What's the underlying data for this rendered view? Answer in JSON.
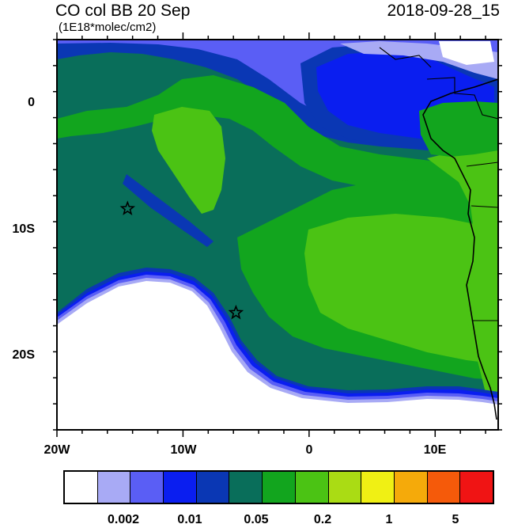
{
  "header": {
    "title_left": "CO col BB 20 Sep",
    "title_right": "2018-09-28_15",
    "subtitle": "(1E18*molec/cm2)"
  },
  "axes": {
    "y_labels": [
      "0",
      "10S",
      "20S"
    ],
    "x_labels": [
      "20W",
      "10W",
      "0",
      "10E"
    ]
  },
  "map": {
    "lon_range": [
      -20,
      15
    ],
    "lat_range": [
      -25,
      5
    ],
    "markers": [
      {
        "name": "star",
        "lon": -14.4,
        "lat": -8.0
      },
      {
        "name": "star",
        "lon": -5.8,
        "lat": -16.0
      }
    ]
  },
  "colorbar": {
    "colors": [
      "#ffffff",
      "#a8aaf5",
      "#5a5ef5",
      "#0a1ef0",
      "#0a37b4",
      "#096e5a",
      "#12a51e",
      "#4bc314",
      "#aadc14",
      "#f0f014",
      "#f5aa0a",
      "#f55a0a",
      "#f01414"
    ],
    "labels": [
      "0.002",
      "0.01",
      "0.05",
      "0.2",
      "1",
      "5"
    ]
  }
}
